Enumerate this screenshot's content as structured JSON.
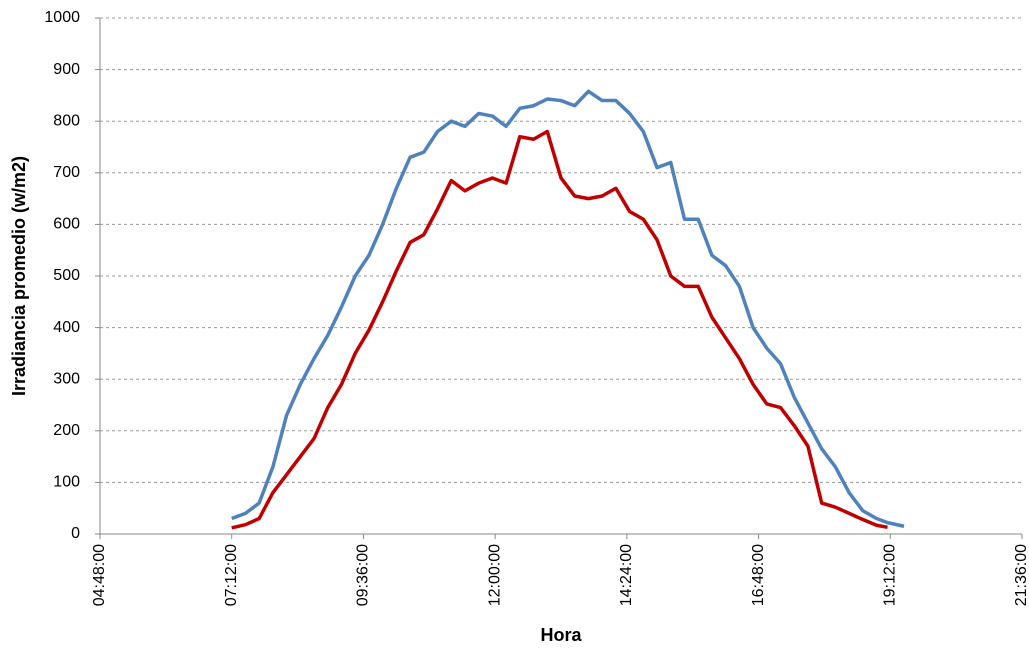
{
  "chart_data": {
    "type": "line",
    "x_label": "Hora",
    "y_label": "Irradiancia promedio (w/m2)",
    "x": [
      7.2,
      7.45,
      7.7,
      7.95,
      8.2,
      8.45,
      8.7,
      8.95,
      9.2,
      9.45,
      9.7,
      9.95,
      10.2,
      10.45,
      10.7,
      10.95,
      11.2,
      11.45,
      11.7,
      11.95,
      12.2,
      12.45,
      12.7,
      12.95,
      13.2,
      13.45,
      13.7,
      13.95,
      14.2,
      14.45,
      14.7,
      14.95,
      15.2,
      15.45,
      15.7,
      15.95,
      16.2,
      16.45,
      16.7,
      16.95,
      17.2,
      17.45,
      17.7,
      17.95,
      18.2,
      18.45,
      18.7,
      18.95,
      19.15,
      19.45
    ],
    "series": [
      {
        "color": "#4f81bd",
        "values": [
          30,
          40,
          60,
          130,
          230,
          290,
          340,
          385,
          440,
          500,
          540,
          600,
          670,
          730,
          740,
          780,
          800,
          790,
          815,
          810,
          790,
          825,
          830,
          843,
          840,
          830,
          858,
          840,
          840,
          815,
          780,
          710,
          720,
          610,
          610,
          540,
          520,
          480,
          400,
          360,
          330,
          265,
          215,
          165,
          130,
          80,
          45,
          30,
          22,
          15
        ]
      },
      {
        "color": "#c00000",
        "values": [
          12,
          18,
          30,
          80,
          115,
          150,
          185,
          245,
          290,
          350,
          395,
          450,
          510,
          565,
          580,
          630,
          685,
          665,
          680,
          690,
          680,
          770,
          765,
          780,
          690,
          655,
          650,
          655,
          670,
          625,
          610,
          570,
          500,
          480,
          480,
          420,
          380,
          340,
          290,
          252,
          245,
          210,
          170,
          60,
          52,
          40,
          28,
          17,
          13,
          null
        ]
      }
    ],
    "xlim": [
      4.8,
      21.6
    ],
    "xticks": [
      {
        "value": 4.8,
        "label": "04:48:00"
      },
      {
        "value": 7.2,
        "label": "07:12:00"
      },
      {
        "value": 9.6,
        "label": "09:36:00"
      },
      {
        "value": 12,
        "label": "12:00:00"
      },
      {
        "value": 14.4,
        "label": "14:24:00"
      },
      {
        "value": 16.8,
        "label": "16:48:00"
      },
      {
        "value": 19.2,
        "label": "19:12:00"
      },
      {
        "value": 21.6,
        "label": "21:36:00"
      }
    ],
    "ylim": [
      0,
      1000
    ],
    "yticks": [
      0,
      100,
      200,
      300,
      400,
      500,
      600,
      700,
      800,
      900,
      1000
    ],
    "grid": true
  }
}
